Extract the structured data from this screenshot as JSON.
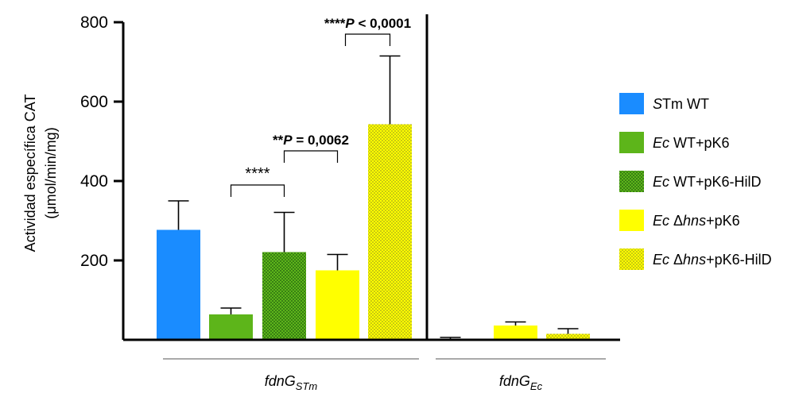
{
  "chart_data": {
    "type": "bar",
    "ylabel_line1": "Actividad específica CAT",
    "ylabel_line2": "(μmol/min/mg)",
    "ylim": [
      0,
      800
    ],
    "yticks": [
      "200",
      "400",
      "600",
      "800"
    ],
    "ytick_values": [
      200,
      400,
      600,
      800
    ],
    "groups": [
      {
        "label": "fdnG",
        "sub": "STm"
      },
      {
        "label": "fdnG",
        "sub": "Ec"
      }
    ],
    "series": [
      {
        "name": "STm WT",
        "color": "#1a8cff",
        "pattern": "solid"
      },
      {
        "name": "Ec WT+pK6",
        "color": "#5db51a",
        "pattern": "solid"
      },
      {
        "name": "Ec WT+pK6-HilD",
        "color": "#3f9a1a",
        "pattern": "dots-dark"
      },
      {
        "name": "Ec Δhns+pK6",
        "color": "#ffff00",
        "pattern": "solid"
      },
      {
        "name": "Ec Δhns+pK6-HilD",
        "color": "#ffff00",
        "pattern": "dots-light"
      }
    ],
    "bars": [
      {
        "group": 0,
        "series": 0,
        "value": 277,
        "error": 73
      },
      {
        "group": 0,
        "series": 1,
        "value": 64,
        "error": 16
      },
      {
        "group": 0,
        "series": 2,
        "value": 221,
        "error": 100
      },
      {
        "group": 0,
        "series": 3,
        "value": 175,
        "error": 40
      },
      {
        "group": 0,
        "series": 4,
        "value": 543,
        "error": 172
      },
      {
        "group": 1,
        "series": 0,
        "value": 0,
        "error": 0
      },
      {
        "group": 1,
        "series": 1,
        "value": 1,
        "error": 5
      },
      {
        "group": 1,
        "series": 3,
        "value": 36,
        "error": 9
      },
      {
        "group": 1,
        "series": 4,
        "value": 15,
        "error": 13
      }
    ],
    "legend": [
      {
        "prefix": "S",
        "rest": "Tm WT"
      },
      {
        "prefix": "Ec",
        "rest": " WT+pK6"
      },
      {
        "prefix": "Ec",
        "rest": " WT+pK6-HilD"
      },
      {
        "prefix": "Ec",
        "rest": " Δ",
        "ital": "hns",
        "tail": "+pK6"
      },
      {
        "prefix": "Ec",
        "rest": " Δ",
        "ital": "hns",
        "tail": "+pK6-HilD"
      }
    ],
    "significance": [
      {
        "from": 1,
        "to": 2,
        "stars": "****",
        "text": ""
      },
      {
        "from": 2,
        "to": 3,
        "stars": "**",
        "text": "P = 0,0062"
      },
      {
        "from": 4,
        "to": 4,
        "stars": "****",
        "text": "P < 0,0001"
      }
    ]
  }
}
